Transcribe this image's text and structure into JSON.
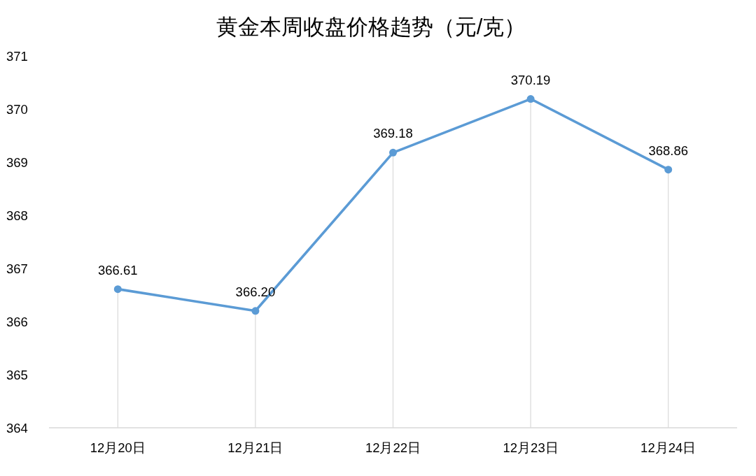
{
  "chart_data": {
    "type": "line",
    "title": "黄金本周收盘价格趋势（元/克）",
    "categories": [
      "12月20日",
      "12月21日",
      "12月22日",
      "12月23日",
      "12月24日"
    ],
    "series": [
      {
        "color": "#5b9bd5",
        "values": [
          366.61,
          366.2,
          369.18,
          370.19,
          368.86
        ],
        "value_labels": [
          "366.61",
          "366.20",
          "369.18",
          "370.19",
          "368.86"
        ]
      }
    ],
    "ylim": [
      364,
      371
    ],
    "yticks": [
      364,
      365,
      366,
      367,
      368,
      369,
      370,
      371
    ],
    "marker": "circle",
    "line_style": "solid"
  }
}
